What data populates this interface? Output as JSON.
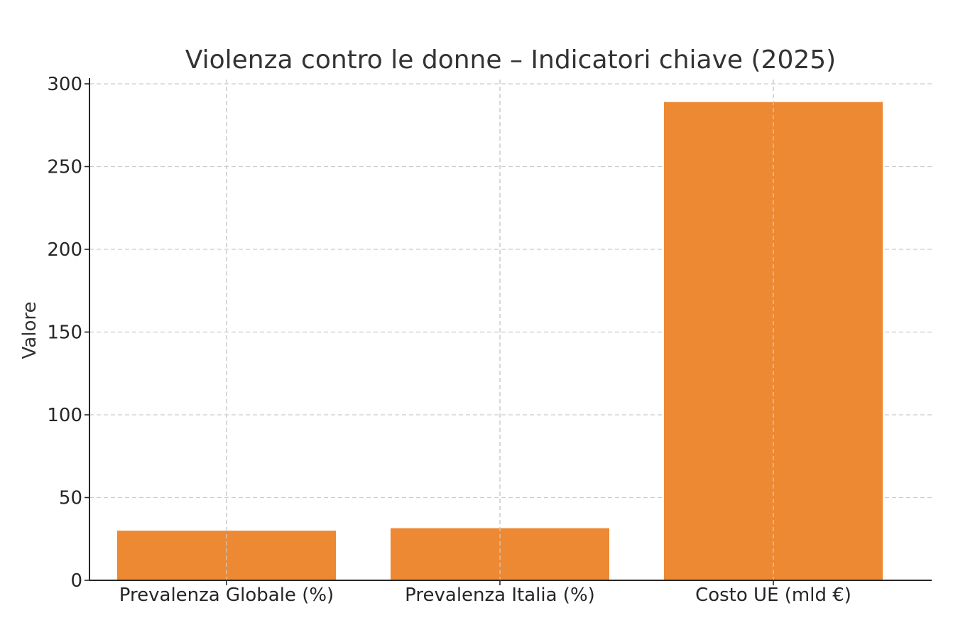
{
  "chart_data": {
    "type": "bar",
    "title": "Violenza contro le donne – Indicatori chiave (2025)",
    "xlabel": "",
    "ylabel": "Valore",
    "categories": [
      "Prevalenza Globale (%)",
      "Prevalenza Italia (%)",
      "Costo UE (mld €)"
    ],
    "values": [
      30,
      31.5,
      289
    ],
    "ylim": [
      0,
      300
    ],
    "yticks": [
      0,
      50,
      100,
      150,
      200,
      250,
      300
    ],
    "grid": true,
    "bar_color": "#ed8833"
  }
}
